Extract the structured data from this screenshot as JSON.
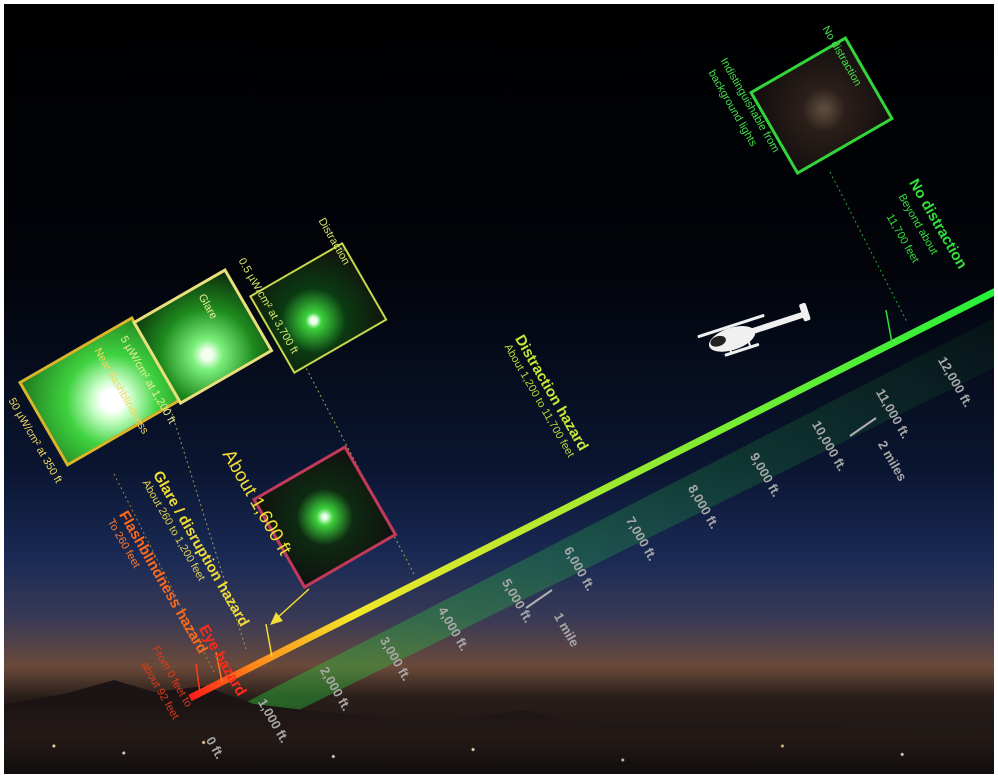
{
  "scale": {
    "feet": [
      "0 ft.",
      "1,000 ft.",
      "2,000 ft.",
      "3,000 ft.",
      "4,000 ft.",
      "5,000 ft.",
      "6,000 ft.",
      "7,000 ft.",
      "8,000 ft.",
      "9,000 ft.",
      "10,000 ft.",
      "11,000 ft.",
      "12,000 ft."
    ],
    "mile1": "1 mile",
    "mile2": "2 miles"
  },
  "zones": {
    "eye": {
      "title": "Eye hazard",
      "sub1": "From 0 feet to",
      "sub2": "about 92 feet",
      "color": "#ff2a1a"
    },
    "flash": {
      "title": "Flashblindness hazard",
      "sub": "To 260 feet",
      "color": "#ff6a1a"
    },
    "glare": {
      "title": "Glare / disruption hazard",
      "sub": "About 260 to 1,200 feet",
      "color": "#f2dc37"
    },
    "distraction": {
      "title": "Distraction hazard",
      "sub": "About 1,200 to 11,700 feet",
      "color": "#c9e63a"
    },
    "none": {
      "title": "No distraction",
      "sub1": "Beyond about",
      "sub2": "11,700 feet",
      "color": "#33e03a"
    }
  },
  "photos": {
    "near_flash": {
      "top": "Near-flashblindness",
      "bottom": "50 µW/cm² at 350 ft",
      "border": "#d9b62a"
    },
    "glare": {
      "top": "Glare",
      "bottom": "5 µW/cm² at 1,200 ft",
      "border": "#e8e07a"
    },
    "distraction": {
      "top": "Distraction",
      "bottom": "0.5 µW/cm² at 3,700 ft",
      "border": "#c7d94a"
    },
    "no_distraction": {
      "top": "No distraction",
      "line1": "Indistinguishable from",
      "line2": "background lights",
      "border": "#33d33a"
    },
    "about": {
      "label": "About 1,600 ft",
      "border": "#c23a5a"
    }
  },
  "colors": {
    "beam_start": "#ff1a1a",
    "beam_mid": "#f2e62a",
    "beam_end": "#22f03a"
  }
}
